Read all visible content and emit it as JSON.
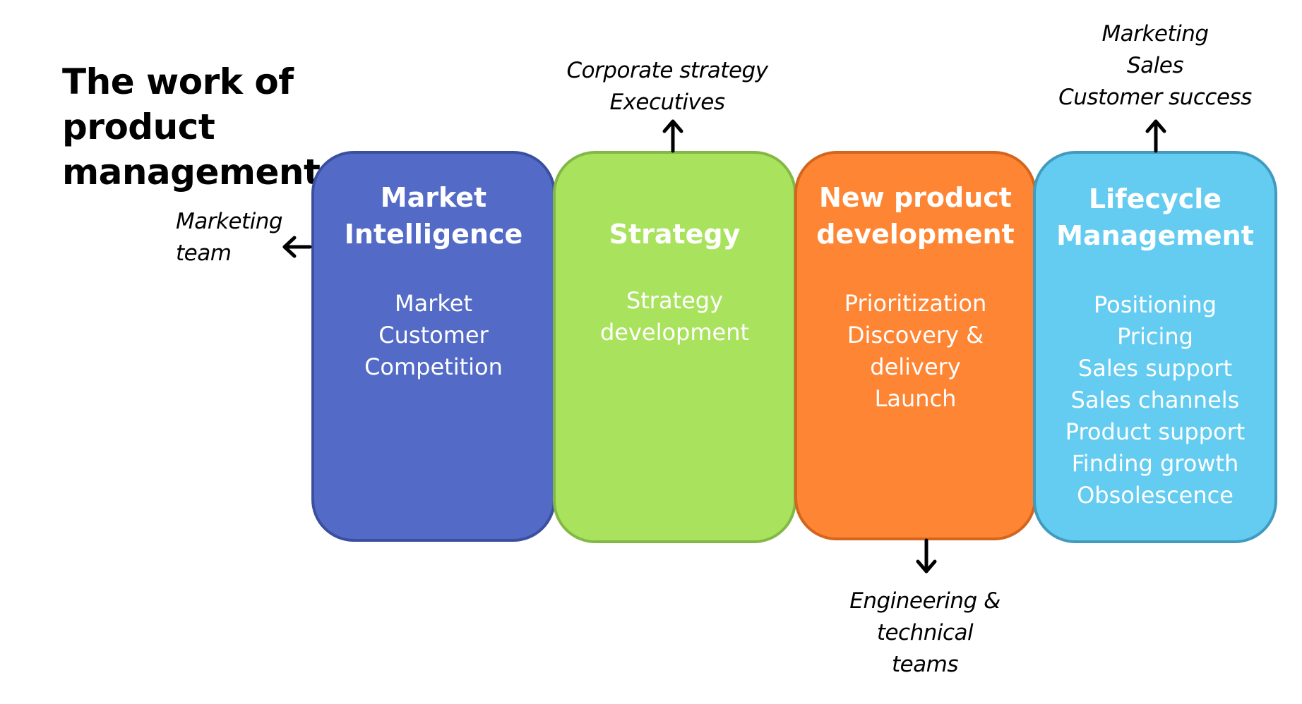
{
  "title": "The work of product management",
  "colors": {
    "market_intelligence_fill": "#536bc6",
    "market_intelligence_border": "#3a4fa0",
    "strategy_fill": "#a9e35d",
    "strategy_border": "#84b846",
    "new_product_fill": "#fe8533",
    "new_product_border": "#d3651d",
    "lifecycle_fill": "#64ccf1",
    "lifecycle_border": "#419bbf"
  },
  "stages": [
    {
      "heading": "Market\nIntelligence",
      "items": [
        "Market",
        "Customer",
        "Competition"
      ]
    },
    {
      "heading": "Strategy",
      "items": [
        "Strategy",
        "development"
      ]
    },
    {
      "heading": "New product\ndevelopment",
      "items": [
        "Prioritization",
        "Discovery &",
        "delivery",
        "Launch"
      ]
    },
    {
      "heading": "Lifecycle\nManagement",
      "items": [
        "Positioning",
        "Pricing",
        "Sales support",
        "Sales channels",
        "Product support",
        "Finding growth",
        "Obsolescence"
      ]
    }
  ],
  "stakeholders": {
    "marketing_team": "Marketing\nteam",
    "corporate": "Corporate strategy\nExecutives",
    "engineering": "Engineering &\ntechnical\nteams",
    "go_to_market": "Marketing\nSales\nCustomer success"
  },
  "icons": {
    "arrow_left": "arrow-left-icon",
    "arrow_up": "arrow-up-icon",
    "arrow_down": "arrow-down-icon"
  }
}
